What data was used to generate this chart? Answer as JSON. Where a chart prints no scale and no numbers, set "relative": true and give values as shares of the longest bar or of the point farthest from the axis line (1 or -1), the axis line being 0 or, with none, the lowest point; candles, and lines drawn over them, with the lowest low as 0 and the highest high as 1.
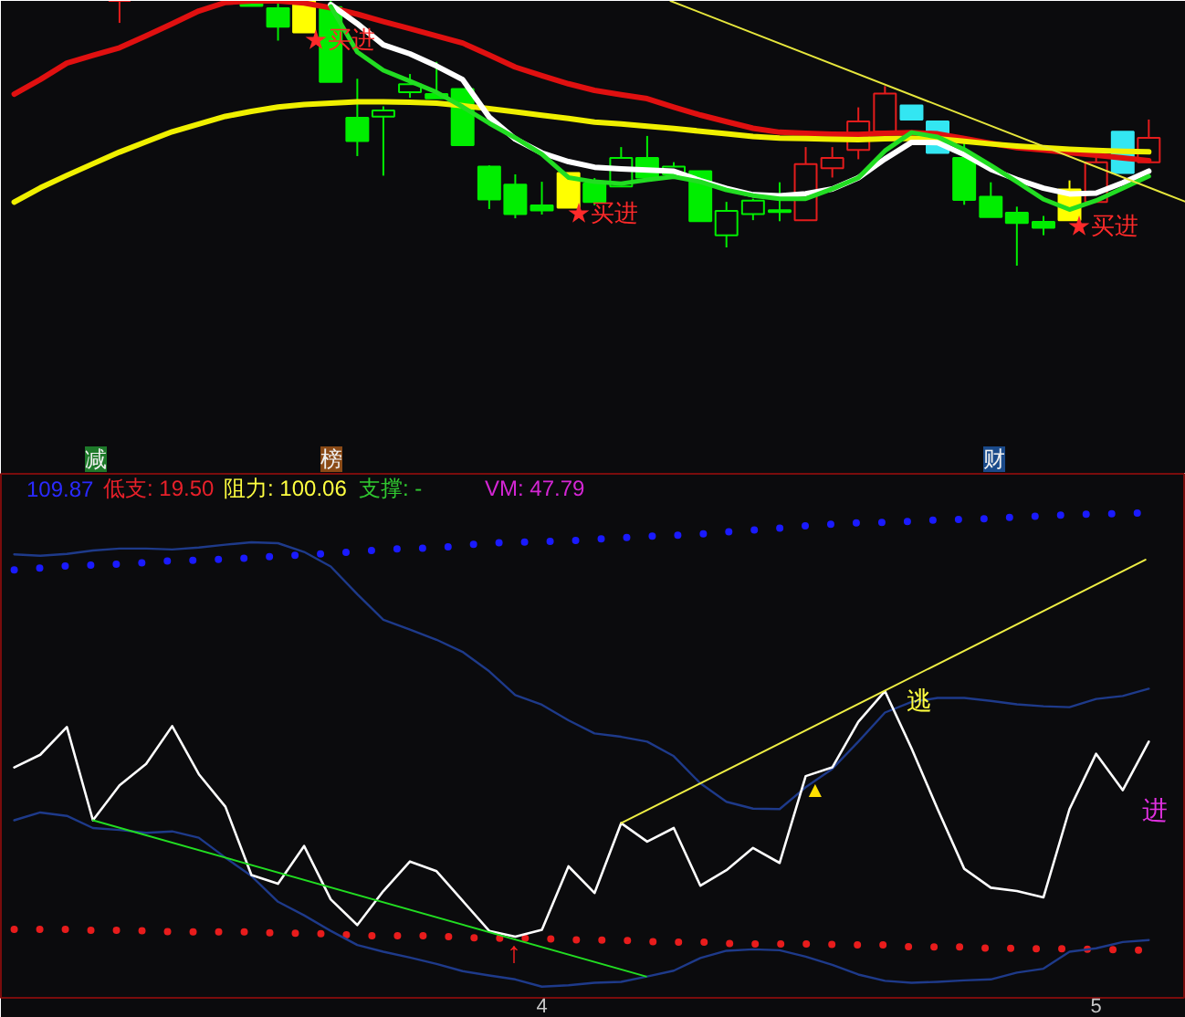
{
  "chart_data": [
    {
      "type": "candlestick",
      "relative": true,
      "tick_labels": false,
      "xlim": [
        3.024,
        5.162
      ],
      "xticks": [
        4,
        5
      ],
      "x": [
        3.238,
        3.476,
        3.524,
        3.571,
        3.619,
        3.667,
        3.714,
        3.762,
        3.81,
        3.857,
        3.905,
        3.952,
        4.0,
        4.048,
        4.095,
        4.143,
        4.19,
        4.238,
        4.286,
        4.333,
        4.381,
        4.429,
        4.476,
        4.524,
        4.571,
        4.619,
        4.667,
        4.714,
        4.762,
        4.81,
        4.857,
        4.905,
        4.952,
        5.0,
        5.048,
        5.095
      ],
      "ohlc": [
        [
          1.0,
          1.0,
          0.917,
          1.0
        ],
        [
          1.0,
          1.0,
          0.981,
          0.981
        ],
        [
          0.972,
          1.0,
          0.85,
          0.903
        ],
        [
          1.0,
          1.0,
          0.881,
          0.881
        ],
        [
          0.977,
          1.0,
          0.694,
          0.694
        ],
        [
          0.559,
          0.706,
          0.414,
          0.471
        ],
        [
          0.563,
          0.602,
          0.34,
          0.586
        ],
        [
          0.655,
          0.724,
          0.634,
          0.685
        ],
        [
          0.648,
          0.77,
          0.632,
          0.632
        ],
        [
          0.667,
          0.667,
          0.455,
          0.455
        ],
        [
          0.374,
          0.379,
          0.214,
          0.25
        ],
        [
          0.306,
          0.345,
          0.179,
          0.195
        ],
        [
          0.228,
          0.317,
          0.193,
          0.209
        ],
        [
          0.35,
          0.35,
          0.219,
          0.219
        ],
        [
          0.31,
          0.331,
          0.228,
          0.241
        ],
        [
          0.299,
          0.448,
          0.297,
          0.407
        ],
        [
          0.407,
          0.49,
          0.333,
          0.333
        ],
        [
          0.345,
          0.391,
          0.338,
          0.374
        ],
        [
          0.357,
          0.357,
          0.168,
          0.168
        ],
        [
          0.115,
          0.241,
          0.069,
          0.207
        ],
        [
          0.195,
          0.253,
          0.172,
          0.246
        ],
        [
          0.203,
          0.315,
          0.168,
          0.21
        ],
        [
          0.172,
          0.448,
          0.172,
          0.384
        ],
        [
          0.368,
          0.448,
          0.333,
          0.407
        ],
        [
          0.437,
          0.598,
          0.402,
          0.545
        ],
        [
          0.506,
          0.678,
          0.503,
          0.65
        ],
        [
          0.605,
          0.605,
          0.552,
          0.552
        ],
        [
          0.545,
          0.545,
          0.426,
          0.426
        ],
        [
          0.407,
          0.471,
          0.23,
          0.248
        ],
        [
          0.26,
          0.315,
          0.184,
          0.184
        ],
        [
          0.2,
          0.223,
          0.0,
          0.161
        ],
        [
          0.166,
          0.188,
          0.115,
          0.143
        ],
        [
          0.288,
          0.322,
          0.172,
          0.172
        ],
        [
          0.241,
          0.437,
          0.241,
          0.391
        ],
        [
          0.506,
          0.506,
          0.35,
          0.35
        ],
        [
          0.391,
          0.552,
          0.391,
          0.483
        ]
      ],
      "colors": [
        "#e41c1c",
        "#00ee00",
        "#00ee00",
        "#ffff00",
        "#00ee00",
        "#00ee00",
        "#00ee00",
        "#00ee00",
        "#00ee00",
        "#00ee00",
        "#00ee00",
        "#00ee00",
        "#00ee00",
        "#ffff00",
        "#00ee00",
        "#00ee00",
        "#00ee00",
        "#00ee00",
        "#00ee00",
        "#00ee00",
        "#00ee00",
        "#00ee00",
        "#e41c1c",
        "#e41c1c",
        "#e41c1c",
        "#e41c1c",
        "#33e6f2",
        "#33e6f2",
        "#00ee00",
        "#00ee00",
        "#00ee00",
        "#00ee00",
        "#ffff00",
        "#e41c1c",
        "#33e6f2",
        "#e41c1c"
      ],
      "series": [
        {
          "type": "line",
          "color": "#e01010",
          "x": [
            3.048,
            3.095,
            3.143,
            3.19,
            3.238,
            3.286,
            3.333,
            3.381,
            3.429,
            3.476,
            3.524,
            3.571,
            3.619,
            3.667,
            3.714,
            3.762,
            3.81,
            3.857,
            3.905,
            3.952,
            4.0,
            4.048,
            4.095,
            4.143,
            4.19,
            4.238,
            4.286,
            4.333,
            4.381,
            4.429,
            4.476,
            4.524,
            4.571,
            4.619,
            4.667,
            4.714,
            4.762,
            4.81,
            4.857,
            4.905,
            4.952,
            5.0,
            5.048,
            5.095
          ],
          "values": [
            0.648,
            0.703,
            0.765,
            0.794,
            0.823,
            0.868,
            0.914,
            0.962,
            0.994,
            1.0,
            1.0,
            0.992,
            0.974,
            0.95,
            0.922,
            0.895,
            0.868,
            0.841,
            0.796,
            0.75,
            0.718,
            0.687,
            0.662,
            0.646,
            0.631,
            0.599,
            0.569,
            0.544,
            0.519,
            0.504,
            0.5,
            0.497,
            0.496,
            0.5,
            0.503,
            0.498,
            0.48,
            0.462,
            0.446,
            0.437,
            0.427,
            0.417,
            0.407,
            0.397
          ]
        },
        {
          "type": "line",
          "color": "#f0f000",
          "x": [
            3.048,
            3.095,
            3.143,
            3.19,
            3.238,
            3.286,
            3.333,
            3.381,
            3.429,
            3.476,
            3.524,
            3.571,
            3.619,
            3.667,
            3.714,
            3.762,
            3.81,
            3.857,
            3.905,
            3.952,
            4.0,
            4.048,
            4.095,
            4.143,
            4.19,
            4.238,
            4.286,
            4.333,
            4.381,
            4.429,
            4.476,
            4.524,
            4.571,
            4.619,
            4.667,
            4.714,
            4.762,
            4.81,
            4.857,
            4.905,
            4.952,
            5.0,
            5.048,
            5.095
          ],
          "values": [
            0.24,
            0.294,
            0.341,
            0.385,
            0.429,
            0.468,
            0.506,
            0.535,
            0.564,
            0.583,
            0.599,
            0.609,
            0.614,
            0.619,
            0.619,
            0.617,
            0.614,
            0.604,
            0.593,
            0.581,
            0.568,
            0.556,
            0.542,
            0.535,
            0.527,
            0.518,
            0.508,
            0.498,
            0.488,
            0.482,
            0.48,
            0.478,
            0.476,
            0.479,
            0.481,
            0.479,
            0.47,
            0.46,
            0.452,
            0.446,
            0.44,
            0.435,
            0.432,
            0.43
          ]
        },
        {
          "type": "line",
          "color": "#ffffff",
          "x": [
            3.619,
            3.667,
            3.714,
            3.762,
            3.81,
            3.857,
            3.905,
            3.952,
            4.0,
            4.048,
            4.095,
            4.143,
            4.19,
            4.238,
            4.286,
            4.333,
            4.381,
            4.429,
            4.476,
            4.524,
            4.571,
            4.619,
            4.667,
            4.714,
            4.762,
            4.81,
            4.857,
            4.905,
            4.952,
            5.0,
            5.048,
            5.095
          ],
          "values": [
            0.986,
            0.914,
            0.834,
            0.8,
            0.754,
            0.703,
            0.561,
            0.478,
            0.426,
            0.393,
            0.372,
            0.366,
            0.361,
            0.357,
            0.321,
            0.292,
            0.268,
            0.264,
            0.272,
            0.29,
            0.332,
            0.403,
            0.466,
            0.465,
            0.42,
            0.364,
            0.326,
            0.293,
            0.271,
            0.274,
            0.313,
            0.357
          ]
        },
        {
          "type": "line",
          "color": "#22dd22",
          "x": [
            3.619,
            3.667,
            3.714,
            3.762,
            3.81,
            3.857,
            3.905,
            3.952,
            4.0,
            4.048,
            4.095,
            4.143,
            4.19,
            4.238,
            4.286,
            4.333,
            4.381,
            4.429,
            4.476,
            4.524,
            4.571,
            4.619,
            4.667,
            4.714,
            4.762,
            4.81,
            4.857,
            4.905,
            4.952,
            5.0,
            5.048,
            5.095
          ],
          "values": [
            0.979,
            0.807,
            0.738,
            0.697,
            0.655,
            0.6,
            0.538,
            0.483,
            0.421,
            0.333,
            0.317,
            0.31,
            0.324,
            0.336,
            0.317,
            0.286,
            0.265,
            0.253,
            0.253,
            0.29,
            0.332,
            0.434,
            0.503,
            0.486,
            0.439,
            0.379,
            0.317,
            0.251,
            0.212,
            0.246,
            0.292,
            0.338
          ]
        },
        {
          "type": "line",
          "color": "#e6e63c",
          "x": [
            4.232,
            5.162
          ],
          "values": [
            1.0,
            0.241
          ]
        }
      ],
      "annotations": [
        "★买进",
        "★买进",
        "★买进",
        "减",
        "榜",
        "财"
      ]
    },
    {
      "type": "line",
      "relative": true,
      "xlim": [
        3.024,
        5.162
      ],
      "xticks": [
        4,
        5
      ],
      "x": [
        3.048,
        3.095,
        3.143,
        3.19,
        3.238,
        3.286,
        3.333,
        3.381,
        3.429,
        3.476,
        3.524,
        3.571,
        3.619,
        3.667,
        3.714,
        3.762,
        3.81,
        3.857,
        3.905,
        3.952,
        4.0,
        4.048,
        4.095,
        4.143,
        4.19,
        4.238,
        4.286,
        4.333,
        4.381,
        4.429,
        4.476,
        4.524,
        4.571,
        4.619,
        4.667,
        4.714,
        4.762,
        4.81,
        4.857,
        4.905,
        4.952,
        5.0,
        5.048,
        5.095
      ],
      "series": [
        {
          "type": "line",
          "line_style": "dotted",
          "color": "#1a1aff",
          "values": [
            0.882,
            0.886,
            0.89,
            0.892,
            0.894,
            0.897,
            0.901,
            0.902,
            0.904,
            0.907,
            0.91,
            0.913,
            0.916,
            0.92,
            0.924,
            0.926,
            0.927,
            0.933,
            0.937,
            0.939,
            0.94,
            0.942,
            0.945,
            0.948,
            0.951,
            0.953,
            0.956,
            0.96,
            0.964,
            0.968,
            0.973,
            0.976,
            0.979,
            0.98,
            0.982,
            0.985,
            0.986,
            0.988,
            0.991,
            0.993,
            0.996,
            0.997,
            0.998,
            1.0
          ]
        },
        {
          "type": "line",
          "line_style": "dotted",
          "color": "#e81c1c",
          "values": [
            0.141,
            0.141,
            0.141,
            0.139,
            0.139,
            0.138,
            0.136,
            0.136,
            0.136,
            0.136,
            0.133,
            0.133,
            0.132,
            0.128,
            0.128,
            0.128,
            0.128,
            0.124,
            0.123,
            0.123,
            0.122,
            0.12,
            0.119,
            0.119,
            0.116,
            0.115,
            0.115,
            0.112,
            0.111,
            0.111,
            0.111,
            0.11,
            0.109,
            0.109,
            0.105,
            0.105,
            0.105,
            0.102,
            0.102,
            0.101,
            0.101,
            0.1,
            0.099,
            0.098
          ]
        },
        {
          "type": "line",
          "color": "#1e3a8a",
          "values": [
            0.914,
            0.911,
            0.915,
            0.922,
            0.926,
            0.926,
            0.924,
            0.928,
            0.934,
            0.939,
            0.937,
            0.919,
            0.889,
            0.832,
            0.779,
            0.759,
            0.738,
            0.713,
            0.673,
            0.624,
            0.604,
            0.572,
            0.545,
            0.538,
            0.528,
            0.498,
            0.442,
            0.404,
            0.39,
            0.389,
            0.434,
            0.472,
            0.528,
            0.588,
            0.61,
            0.618,
            0.618,
            0.612,
            0.605,
            0.601,
            0.599,
            0.616,
            0.622,
            0.637
          ]
        },
        {
          "type": "line",
          "color": "#1e3a8a",
          "values": [
            0.366,
            0.382,
            0.375,
            0.35,
            0.346,
            0.34,
            0.343,
            0.33,
            0.289,
            0.251,
            0.198,
            0.17,
            0.138,
            0.109,
            0.095,
            0.083,
            0.07,
            0.055,
            0.046,
            0.038,
            0.023,
            0.026,
            0.031,
            0.033,
            0.044,
            0.056,
            0.082,
            0.097,
            0.1,
            0.098,
            0.085,
            0.068,
            0.048,
            0.035,
            0.031,
            0.033,
            0.036,
            0.038,
            0.052,
            0.06,
            0.095,
            0.102,
            0.115,
            0.119
          ]
        },
        {
          "type": "line",
          "color": "#ffffff",
          "values": [
            0.475,
            0.501,
            0.558,
            0.366,
            0.438,
            0.482,
            0.56,
            0.461,
            0.394,
            0.253,
            0.235,
            0.313,
            0.203,
            0.15,
            0.22,
            0.281,
            0.261,
            0.2,
            0.138,
            0.126,
            0.14,
            0.271,
            0.216,
            0.36,
            0.322,
            0.35,
            0.231,
            0.263,
            0.309,
            0.278,
            0.457,
            0.475,
            0.569,
            0.632,
            0.514,
            0.389,
            0.266,
            0.227,
            0.22,
            0.207,
            0.389,
            0.503,
            0.428,
            0.528
          ]
        },
        {
          "type": "line",
          "color": "#22dd22",
          "x": [
            3.19,
            4.188
          ],
          "values": [
            0.366,
            0.044
          ]
        },
        {
          "type": "line",
          "color": "#eeee44",
          "x": [
            4.143,
            5.089
          ],
          "values": [
            0.36,
            0.903
          ]
        }
      ],
      "annotations": [
        "109.87",
        "低支: 19.50",
        "阻力: 100.06",
        "支撑: -",
        "VM: 47.79",
        "逃",
        "进",
        "▲",
        "↑"
      ]
    }
  ]
}
